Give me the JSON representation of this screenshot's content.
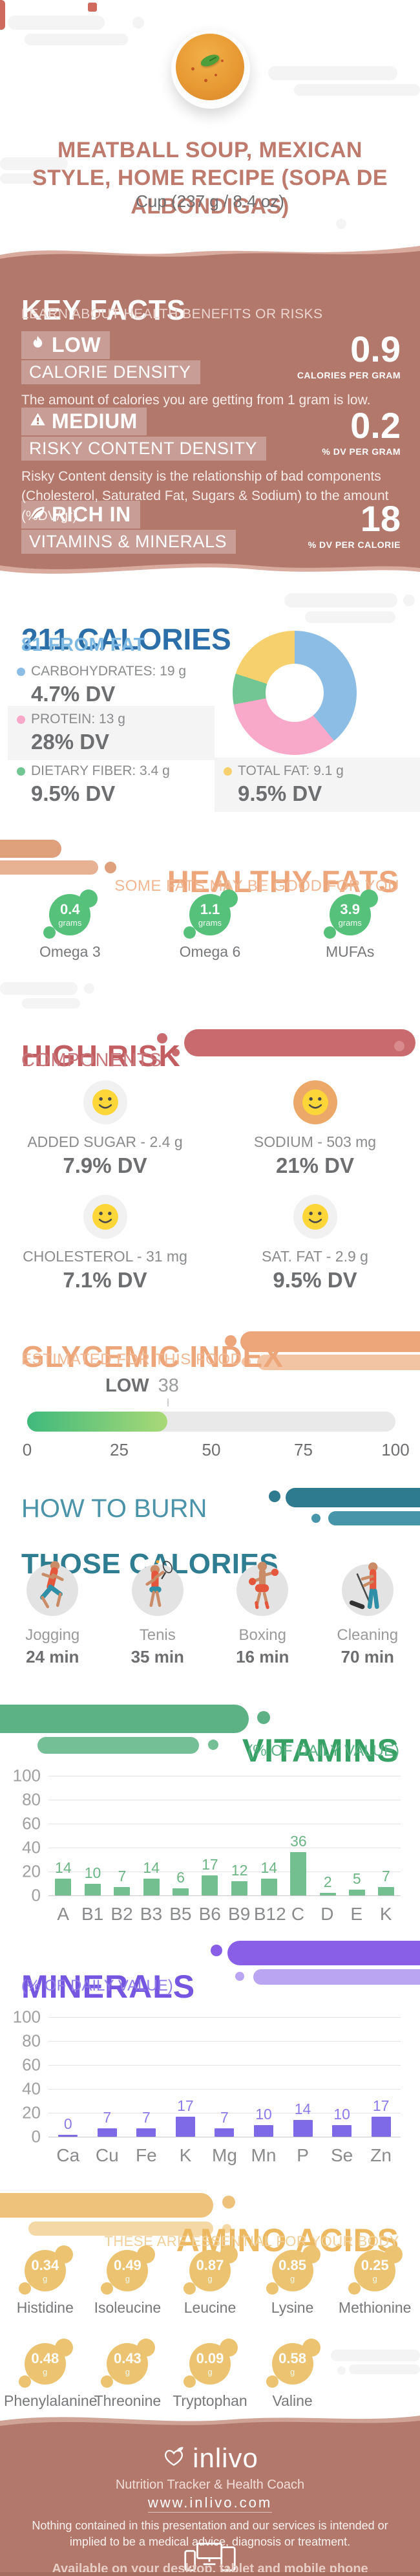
{
  "palette": {
    "brown_bg": "#b3786c",
    "title_rose": "#bd7a6d",
    "calories_blue": "#2b6ea8",
    "from_fat_blue": "#7db9e3",
    "donut_blue": "#8cbde4",
    "donut_pink": "#f8a8c8",
    "donut_green": "#72c693",
    "donut_yellow": "#f7d06e",
    "healthy_green": "#56c17b",
    "orange_accent": "#eda57a",
    "risk_red": "#c25d62",
    "teal": "#2f7d91",
    "vitamins_green": "#36a065",
    "vitamin_bar": "#74bf90",
    "minerals_purple": "#7456e0",
    "mineral_bar": "#7e6ae6",
    "amino_gold": "#ecc371",
    "smiley_yellow": "#fdd63a",
    "sodium_circle_orange": "#eca869",
    "risk_circle_gray": "#f1f1f1"
  },
  "header": {
    "title": "MEATBALL SOUP, MEXICAN STYLE, HOME RECIPE (SOPA DE ALBONDIGAS)",
    "serving": "Cup (237 g / 8.4 oz)"
  },
  "key_facts": {
    "title": "KEY FACTS",
    "subtitle": "LEARN ABOUT HEALTH BENEFITS OR RISKS",
    "items": [
      {
        "icon": "flame-icon",
        "level": "LOW",
        "label": "CALORIE DENSITY",
        "value": "0.9",
        "unit": "CALORIES PER GRAM",
        "description": "The amount of calories you are getting from 1 gram is low."
      },
      {
        "icon": "warning-icon",
        "level": "MEDIUM",
        "label": "RISKY CONTENT DENSITY",
        "value": "0.2",
        "unit": "% DV PER GRAM",
        "description": "Risky Content density is the relationship of bad components (Cholesterol, Saturated Fat, Sugars & Sodium) to the amount (%DV/gr)."
      },
      {
        "icon": "leaf-icon",
        "level": "RICH IN",
        "label": "VITAMINS & MINERALS",
        "value": "18",
        "unit": "% DV PER CALORIE",
        "description": ""
      }
    ]
  },
  "calories": {
    "title": "211 CALORIES",
    "subtitle": "81 FROM FAT",
    "legend": [
      {
        "name": "CARBOHYDRATES: 19 g",
        "dv": "4.7% DV",
        "color": "#8cbde4",
        "shaded": false,
        "col": 0,
        "row": 0
      },
      {
        "name": "PROTEIN: 13 g",
        "dv": "28% DV",
        "color": "#f8a8c8",
        "shaded": true,
        "col": 0,
        "row": 1
      },
      {
        "name": "DIETARY FIBER: 3.4 g",
        "dv": "9.5% DV",
        "color": "#72c693",
        "shaded": false,
        "col": 0,
        "row": 2
      },
      {
        "name": "TOTAL FAT: 9.1 g",
        "dv": "9.5% DV",
        "color": "#f7d06e",
        "shaded": true,
        "col": 1,
        "row": 2
      }
    ]
  },
  "healthy_fats": {
    "title": "HEALTHY FATS",
    "subtitle": "SOME FATS MAY BE GOOD FOR YOU",
    "unit": "grams",
    "items": [
      {
        "name": "Omega 3",
        "value": "0.4"
      },
      {
        "name": "Omega 6",
        "value": "1.1"
      },
      {
        "name": "MUFAs",
        "value": "3.9"
      }
    ]
  },
  "high_risk": {
    "title": "HIGH RISK",
    "subtitle": "COMPONENTS",
    "items": [
      {
        "name": "ADDED SUGAR - 2.4 g",
        "dv": "7.9% DV",
        "circle": "#f1f1f1"
      },
      {
        "name": "SODIUM - 503 mg",
        "dv": "21% DV",
        "circle": "#eca869"
      },
      {
        "name": "CHOLESTEROL - 31 mg",
        "dv": "7.1% DV",
        "circle": "#f1f1f1"
      },
      {
        "name": "SAT. FAT - 2.9 g",
        "dv": "9.5% DV",
        "circle": "#f1f1f1"
      }
    ]
  },
  "glycemic_index": {
    "title": "GLYCEMIC INDEX",
    "subtitle": "ESTIMATED FOR THIS FOOD",
    "level": "LOW",
    "value": 38,
    "range": [
      0,
      100
    ],
    "ticks": [
      0,
      25,
      50,
      75,
      100
    ]
  },
  "burn": {
    "title_line1": "HOW TO BURN",
    "title_line2": "THOSE CALORIES",
    "activities": [
      {
        "name": "Jogging",
        "minutes": "24 min",
        "icon": "jogging-icon"
      },
      {
        "name": "Tenis",
        "minutes": "35 min",
        "icon": "tennis-icon"
      },
      {
        "name": "Boxing",
        "minutes": "16 min",
        "icon": "boxing-icon"
      },
      {
        "name": "Cleaning",
        "minutes": "70 min",
        "icon": "cleaning-icon"
      }
    ]
  },
  "vitamins": {
    "title": "VITAMINS",
    "subtitle": "(% OF DAILY VALUE)"
  },
  "minerals": {
    "title": "MINERALS",
    "subtitle": "(% OF DAILY VALUE)"
  },
  "amino_acids": {
    "title": "AMINO ACIDS",
    "subtitle": "THESE ARE ESSENTIAL FOR YOUR BODY",
    "unit": "g",
    "items": [
      {
        "name": "Histidine",
        "value": "0.34"
      },
      {
        "name": "Isoleucine",
        "value": "0.49"
      },
      {
        "name": "Leucine",
        "value": "0.87"
      },
      {
        "name": "Lysine",
        "value": "0.85"
      },
      {
        "name": "Methionine",
        "value": "0.25"
      },
      {
        "name": "Phenylalanine",
        "value": "0.48"
      },
      {
        "name": "Threonine",
        "value": "0.43"
      },
      {
        "name": "Tryptophan",
        "value": "0.09"
      },
      {
        "name": "Valine",
        "value": "0.58"
      }
    ]
  },
  "footer": {
    "brand": "inlivo",
    "tagline": "Nutrition Tracker & Health Coach",
    "url": "www.inlivo.com",
    "disclaimer": "Nothing contained in this presentation and our services is intended or implied to be a medical advice, diagnosis or treatment.",
    "availability": "Available on your desktop, tablet and mobile phone"
  },
  "chart_data": [
    {
      "type": "pie",
      "title": "211 CALORIES — macronutrient breakdown (donut)",
      "labels": [
        "Carbohydrates: 19 g (4.7% DV)",
        "Protein: 13 g (28% DV)",
        "Dietary Fiber: 3.4 g (9.5% DV)",
        "Total Fat: 9.1 g (9.5% DV)"
      ],
      "values": [
        39,
        33,
        8,
        20
      ],
      "colors": [
        "#8cbde4",
        "#f8a8c8",
        "#72c693",
        "#f7d06e"
      ],
      "legend_position": "left"
    },
    {
      "type": "bar",
      "title": "VITAMINS (% OF DAILY VALUE)",
      "categories": [
        "A",
        "B1",
        "B2",
        "B3",
        "B5",
        "B6",
        "B9",
        "B12",
        "C",
        "D",
        "E",
        "K"
      ],
      "values": [
        14,
        10,
        7,
        14,
        6,
        17,
        12,
        14,
        36,
        2,
        5,
        7
      ],
      "xlabel": "",
      "ylabel": "% of Daily Value",
      "ylim": [
        0,
        100
      ],
      "yticks": [
        0,
        20,
        40,
        60,
        80,
        100
      ],
      "grid": true,
      "bar_color": "#74bf90",
      "label_color": "#6cb585"
    },
    {
      "type": "bar",
      "title": "MINERALS (% OF DAILY VALUE)",
      "categories": [
        "Ca",
        "Cu",
        "Fe",
        "K",
        "Mg",
        "Mn",
        "P",
        "Se",
        "Zn"
      ],
      "values": [
        0,
        7,
        7,
        17,
        7,
        10,
        14,
        10,
        17
      ],
      "xlabel": "",
      "ylabel": "% of Daily Value",
      "ylim": [
        0,
        100
      ],
      "yticks": [
        0,
        20,
        40,
        60,
        80,
        100
      ],
      "grid": true,
      "bar_color": "#7e6ae6",
      "label_color": "#8a7aea"
    },
    {
      "type": "gauge",
      "title": "GLYCEMIC INDEX (estimated)",
      "value": 38,
      "label": "LOW",
      "range": [
        0,
        100
      ],
      "ticks": [
        0,
        25,
        50,
        75,
        100
      ],
      "fill_colors": [
        "#3fba7c",
        "#a9d977"
      ],
      "track_color": "#e9e9e9"
    }
  ]
}
